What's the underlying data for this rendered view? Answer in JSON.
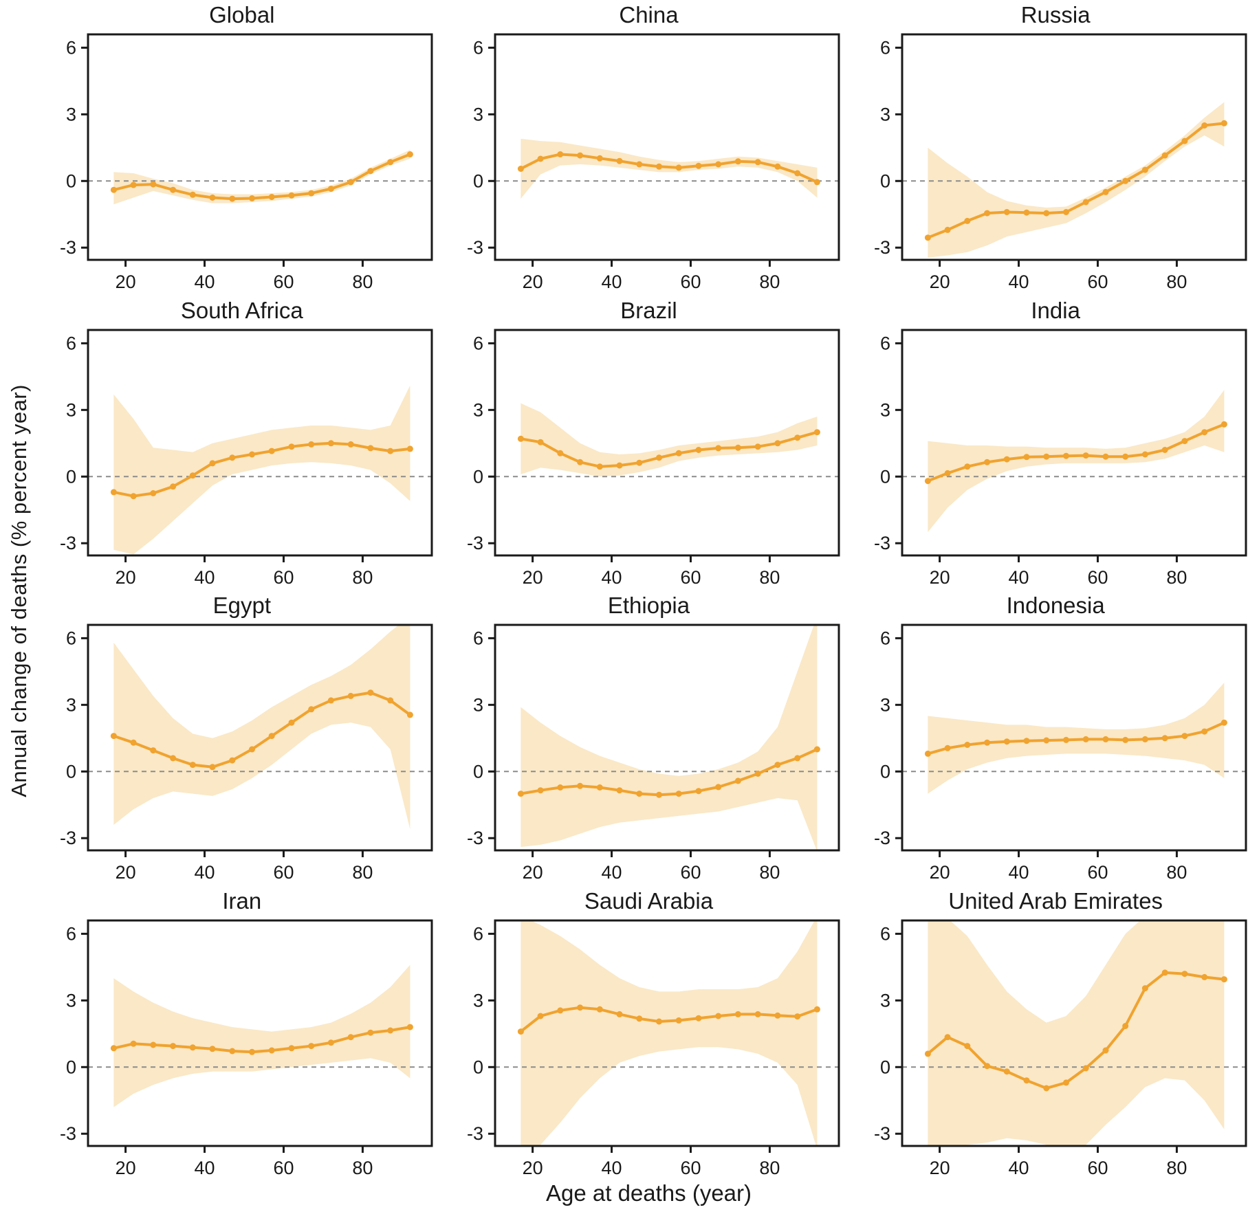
{
  "figure": {
    "y_axis_label": "Annual change of deaths (% percent year)",
    "x_axis_label": "Age at deaths (year)",
    "colors": {
      "line": "#F0A32F",
      "marker": "#F0A32F",
      "band": "#FAE8C7",
      "zero_line": "#8C8C8C",
      "axis": "#1A1A1A",
      "background": "#FFFFFF"
    }
  },
  "chart_data": [
    {
      "type": "line",
      "title": "Global",
      "x": [
        17,
        22,
        27,
        32,
        37,
        42,
        47,
        52,
        57,
        62,
        67,
        72,
        77,
        82,
        87,
        92
      ],
      "y": [
        -0.4,
        -0.18,
        -0.15,
        -0.4,
        -0.62,
        -0.75,
        -0.8,
        -0.78,
        -0.72,
        -0.65,
        -0.55,
        -0.35,
        -0.05,
        0.45,
        0.85,
        1.2
      ],
      "band_upper": [
        0.4,
        0.35,
        0.1,
        -0.1,
        -0.4,
        -0.55,
        -0.6,
        -0.6,
        -0.55,
        -0.5,
        -0.4,
        -0.2,
        0.1,
        0.6,
        1.0,
        1.4
      ],
      "band_lower": [
        -1.05,
        -0.75,
        -0.45,
        -0.65,
        -0.85,
        -1.0,
        -1.0,
        -0.95,
        -0.9,
        -0.8,
        -0.7,
        -0.5,
        -0.2,
        0.3,
        0.7,
        1.0
      ],
      "xticks": [
        20,
        40,
        60,
        80
      ],
      "yticks": [
        6,
        3,
        0,
        -3
      ],
      "xlim": [
        10.5,
        97.5
      ],
      "ylim": [
        -3.55,
        6.6
      ],
      "grid": false,
      "zero_line_dashed": true
    },
    {
      "type": "line",
      "title": "China",
      "x": [
        17,
        22,
        27,
        32,
        37,
        42,
        47,
        52,
        57,
        62,
        67,
        72,
        77,
        82,
        87,
        92
      ],
      "y": [
        0.55,
        1.0,
        1.2,
        1.15,
        1.02,
        0.9,
        0.75,
        0.65,
        0.6,
        0.68,
        0.75,
        0.88,
        0.85,
        0.65,
        0.35,
        -0.05
      ],
      "band_upper": [
        1.9,
        1.8,
        1.75,
        1.6,
        1.45,
        1.3,
        1.1,
        0.95,
        0.85,
        0.9,
        1.0,
        1.1,
        1.05,
        0.9,
        0.75,
        0.6
      ],
      "band_lower": [
        -0.8,
        0.3,
        0.7,
        0.75,
        0.7,
        0.6,
        0.5,
        0.4,
        0.4,
        0.5,
        0.55,
        0.65,
        0.6,
        0.4,
        0.0,
        -0.75
      ],
      "xticks": [
        20,
        40,
        60,
        80
      ],
      "yticks": [
        6,
        3,
        0,
        -3
      ],
      "xlim": [
        10.5,
        97.5
      ],
      "ylim": [
        -3.55,
        6.6
      ],
      "grid": false,
      "zero_line_dashed": true
    },
    {
      "type": "line",
      "title": "Russia",
      "x": [
        17,
        22,
        27,
        32,
        37,
        42,
        47,
        52,
        57,
        62,
        67,
        72,
        77,
        82,
        87,
        92
      ],
      "y": [
        -2.55,
        -2.2,
        -1.8,
        -1.45,
        -1.4,
        -1.42,
        -1.45,
        -1.4,
        -0.95,
        -0.5,
        0.0,
        0.5,
        1.15,
        1.8,
        2.5,
        2.6
      ],
      "band_upper": [
        1.5,
        0.8,
        0.2,
        -0.5,
        -0.9,
        -1.1,
        -1.2,
        -1.15,
        -0.75,
        -0.3,
        0.2,
        0.7,
        1.35,
        2.05,
        2.85,
        3.55
      ],
      "band_lower": [
        -3.45,
        -3.35,
        -3.2,
        -2.9,
        -2.5,
        -2.3,
        -2.1,
        -1.9,
        -1.45,
        -0.95,
        -0.4,
        0.2,
        0.9,
        1.55,
        2.05,
        1.55
      ],
      "xticks": [
        20,
        40,
        60,
        80
      ],
      "yticks": [
        6,
        3,
        0,
        -3
      ],
      "xlim": [
        10.5,
        97.5
      ],
      "ylim": [
        -3.55,
        6.6
      ],
      "grid": false,
      "zero_line_dashed": true
    },
    {
      "type": "line",
      "title": "South Africa",
      "x": [
        17,
        22,
        27,
        32,
        37,
        42,
        47,
        52,
        57,
        62,
        67,
        72,
        77,
        82,
        87,
        92
      ],
      "y": [
        -0.7,
        -0.88,
        -0.75,
        -0.45,
        0.05,
        0.6,
        0.85,
        1.0,
        1.15,
        1.35,
        1.45,
        1.5,
        1.45,
        1.28,
        1.15,
        1.25
      ],
      "band_upper": [
        3.7,
        2.6,
        1.3,
        1.2,
        1.1,
        1.5,
        1.7,
        1.9,
        2.1,
        2.2,
        2.3,
        2.3,
        2.2,
        2.1,
        2.3,
        4.1
      ],
      "band_lower": [
        -3.3,
        -3.5,
        -2.8,
        -2.0,
        -1.2,
        -0.4,
        0.1,
        0.3,
        0.5,
        0.6,
        0.65,
        0.6,
        0.5,
        0.3,
        -0.3,
        -1.1
      ],
      "xticks": [
        20,
        40,
        60,
        80
      ],
      "yticks": [
        6,
        3,
        0,
        -3
      ],
      "xlim": [
        10.5,
        97.5
      ],
      "ylim": [
        -3.55,
        6.6
      ],
      "grid": false,
      "zero_line_dashed": true
    },
    {
      "type": "line",
      "title": "Brazil",
      "x": [
        17,
        22,
        27,
        32,
        37,
        42,
        47,
        52,
        57,
        62,
        67,
        72,
        77,
        82,
        87,
        92
      ],
      "y": [
        1.7,
        1.55,
        1.05,
        0.65,
        0.45,
        0.5,
        0.62,
        0.85,
        1.05,
        1.2,
        1.28,
        1.3,
        1.35,
        1.5,
        1.75,
        2.0
      ],
      "band_upper": [
        3.3,
        2.9,
        2.2,
        1.5,
        1.1,
        1.0,
        1.05,
        1.2,
        1.4,
        1.5,
        1.6,
        1.7,
        1.8,
        2.0,
        2.4,
        2.7
      ],
      "band_lower": [
        0.1,
        0.4,
        0.3,
        0.15,
        0.0,
        0.05,
        0.2,
        0.4,
        0.7,
        0.85,
        0.95,
        1.0,
        1.05,
        1.1,
        1.2,
        1.4
      ],
      "xticks": [
        20,
        40,
        60,
        80
      ],
      "yticks": [
        6,
        3,
        0,
        -3
      ],
      "xlim": [
        10.5,
        97.5
      ],
      "ylim": [
        -3.55,
        6.6
      ],
      "grid": false,
      "zero_line_dashed": true
    },
    {
      "type": "line",
      "title": "India",
      "x": [
        17,
        22,
        27,
        32,
        37,
        42,
        47,
        52,
        57,
        62,
        67,
        72,
        77,
        82,
        87,
        92
      ],
      "y": [
        -0.2,
        0.15,
        0.45,
        0.65,
        0.78,
        0.88,
        0.9,
        0.93,
        0.95,
        0.9,
        0.9,
        1.0,
        1.2,
        1.6,
        2.0,
        2.35
      ],
      "band_upper": [
        1.6,
        1.5,
        1.4,
        1.4,
        1.35,
        1.35,
        1.3,
        1.3,
        1.3,
        1.25,
        1.3,
        1.5,
        1.7,
        2.0,
        2.7,
        3.9
      ],
      "band_lower": [
        -2.5,
        -1.4,
        -0.6,
        -0.1,
        0.25,
        0.45,
        0.55,
        0.6,
        0.6,
        0.6,
        0.6,
        0.65,
        0.8,
        1.1,
        1.4,
        1.1
      ],
      "xticks": [
        20,
        40,
        60,
        80
      ],
      "yticks": [
        6,
        3,
        0,
        -3
      ],
      "xlim": [
        10.5,
        97.5
      ],
      "ylim": [
        -3.55,
        6.6
      ],
      "grid": false,
      "zero_line_dashed": true
    },
    {
      "type": "line",
      "title": "Egypt",
      "x": [
        17,
        22,
        27,
        32,
        37,
        42,
        47,
        52,
        57,
        62,
        67,
        72,
        77,
        82,
        87,
        92
      ],
      "y": [
        1.6,
        1.3,
        0.95,
        0.6,
        0.3,
        0.2,
        0.5,
        1.0,
        1.6,
        2.2,
        2.8,
        3.2,
        3.4,
        3.55,
        3.2,
        2.55
      ],
      "band_upper": [
        5.8,
        4.6,
        3.4,
        2.4,
        1.7,
        1.5,
        1.8,
        2.3,
        2.9,
        3.4,
        3.9,
        4.3,
        4.8,
        5.5,
        6.3,
        7.0
      ],
      "band_lower": [
        -2.4,
        -1.7,
        -1.2,
        -0.9,
        -1.0,
        -1.1,
        -0.8,
        -0.3,
        0.3,
        1.0,
        1.7,
        2.1,
        2.2,
        2.0,
        1.0,
        -2.6
      ],
      "xticks": [
        20,
        40,
        60,
        80
      ],
      "yticks": [
        6,
        3,
        0,
        -3
      ],
      "xlim": [
        10.5,
        97.5
      ],
      "ylim": [
        -3.55,
        6.6
      ],
      "grid": false,
      "zero_line_dashed": true
    },
    {
      "type": "line",
      "title": "Ethiopia",
      "x": [
        17,
        22,
        27,
        32,
        37,
        42,
        47,
        52,
        57,
        62,
        67,
        72,
        77,
        82,
        87,
        92
      ],
      "y": [
        -1.0,
        -0.85,
        -0.72,
        -0.65,
        -0.72,
        -0.85,
        -1.0,
        -1.05,
        -1.0,
        -0.88,
        -0.7,
        -0.42,
        -0.1,
        0.3,
        0.6,
        1.0
      ],
      "band_upper": [
        2.9,
        2.2,
        1.6,
        1.1,
        0.7,
        0.4,
        0.1,
        -0.1,
        -0.2,
        -0.1,
        0.1,
        0.4,
        0.9,
        2.0,
        4.5,
        7.0
      ],
      "band_lower": [
        -3.4,
        -3.3,
        -3.1,
        -2.8,
        -2.5,
        -2.3,
        -2.2,
        -2.1,
        -2.0,
        -1.9,
        -1.8,
        -1.6,
        -1.4,
        -1.2,
        -1.3,
        -3.6
      ],
      "xticks": [
        20,
        40,
        60,
        80
      ],
      "yticks": [
        6,
        3,
        0,
        -3
      ],
      "xlim": [
        10.5,
        97.5
      ],
      "ylim": [
        -3.55,
        6.6
      ],
      "grid": false,
      "zero_line_dashed": true
    },
    {
      "type": "line",
      "title": "Indonesia",
      "x": [
        17,
        22,
        27,
        32,
        37,
        42,
        47,
        52,
        57,
        62,
        67,
        72,
        77,
        82,
        87,
        92
      ],
      "y": [
        0.8,
        1.05,
        1.2,
        1.3,
        1.35,
        1.38,
        1.4,
        1.42,
        1.45,
        1.45,
        1.42,
        1.45,
        1.5,
        1.6,
        1.8,
        2.2
      ],
      "band_upper": [
        2.5,
        2.4,
        2.3,
        2.2,
        2.1,
        2.1,
        2.0,
        2.0,
        1.95,
        1.9,
        1.9,
        1.95,
        2.1,
        2.4,
        3.0,
        4.0
      ],
      "band_lower": [
        -1.0,
        -0.4,
        0.1,
        0.4,
        0.6,
        0.7,
        0.75,
        0.8,
        0.8,
        0.8,
        0.75,
        0.7,
        0.6,
        0.5,
        0.3,
        -0.3
      ],
      "xticks": [
        20,
        40,
        60,
        80
      ],
      "yticks": [
        6,
        3,
        0,
        -3
      ],
      "xlim": [
        10.5,
        97.5
      ],
      "ylim": [
        -3.55,
        6.6
      ],
      "grid": false,
      "zero_line_dashed": true
    },
    {
      "type": "line",
      "title": "Iran",
      "x": [
        17,
        22,
        27,
        32,
        37,
        42,
        47,
        52,
        57,
        62,
        67,
        72,
        77,
        82,
        87,
        92
      ],
      "y": [
        0.85,
        1.05,
        1.0,
        0.95,
        0.88,
        0.82,
        0.72,
        0.68,
        0.75,
        0.85,
        0.95,
        1.1,
        1.35,
        1.55,
        1.65,
        1.8
      ],
      "band_upper": [
        4.0,
        3.4,
        2.9,
        2.5,
        2.2,
        2.0,
        1.8,
        1.7,
        1.6,
        1.7,
        1.8,
        2.0,
        2.4,
        2.9,
        3.6,
        4.6
      ],
      "band_lower": [
        -1.8,
        -1.2,
        -0.8,
        -0.5,
        -0.3,
        -0.2,
        -0.2,
        -0.2,
        -0.1,
        0.0,
        0.1,
        0.2,
        0.3,
        0.4,
        0.2,
        -0.5
      ],
      "xticks": [
        20,
        40,
        60,
        80
      ],
      "yticks": [
        6,
        3,
        0,
        -3
      ],
      "xlim": [
        10.5,
        97.5
      ],
      "ylim": [
        -3.55,
        6.6
      ],
      "grid": false,
      "zero_line_dashed": true
    },
    {
      "type": "line",
      "title": "Saudi Arabia",
      "x": [
        17,
        22,
        27,
        32,
        37,
        42,
        47,
        52,
        57,
        62,
        67,
        72,
        77,
        82,
        87,
        92
      ],
      "y": [
        1.6,
        2.3,
        2.55,
        2.68,
        2.6,
        2.38,
        2.18,
        2.05,
        2.1,
        2.2,
        2.3,
        2.38,
        2.38,
        2.32,
        2.28,
        2.6
      ],
      "band_upper": [
        6.8,
        6.4,
        5.9,
        5.3,
        4.6,
        4.0,
        3.6,
        3.4,
        3.4,
        3.5,
        3.5,
        3.5,
        3.6,
        4.0,
        5.2,
        6.8
      ],
      "band_lower": [
        -3.7,
        -3.5,
        -2.5,
        -1.4,
        -0.5,
        0.2,
        0.5,
        0.7,
        0.8,
        0.9,
        0.9,
        0.8,
        0.6,
        0.2,
        -0.8,
        -3.7
      ],
      "xticks": [
        20,
        40,
        60,
        80
      ],
      "yticks": [
        6,
        3,
        0,
        -3
      ],
      "xlim": [
        10.5,
        97.5
      ],
      "ylim": [
        -3.55,
        6.6
      ],
      "grid": false,
      "zero_line_dashed": true
    },
    {
      "type": "line",
      "title": "United Arab Emirates",
      "x": [
        17,
        22,
        27,
        32,
        37,
        42,
        47,
        52,
        57,
        62,
        67,
        72,
        77,
        82,
        87,
        92
      ],
      "y": [
        0.6,
        1.35,
        0.95,
        0.05,
        -0.2,
        -0.6,
        -0.95,
        -0.7,
        -0.05,
        0.75,
        1.85,
        3.55,
        4.25,
        4.2,
        4.05,
        3.95
      ],
      "band_upper": [
        6.8,
        6.7,
        5.9,
        4.6,
        3.4,
        2.6,
        2.0,
        2.3,
        3.2,
        4.6,
        6.0,
        6.8,
        6.8,
        6.8,
        6.7,
        6.6
      ],
      "band_lower": [
        -3.7,
        -3.6,
        -3.5,
        -3.4,
        -3.2,
        -3.3,
        -3.5,
        -3.6,
        -3.5,
        -2.6,
        -1.8,
        -0.9,
        -0.5,
        -0.6,
        -1.5,
        -2.8
      ],
      "xticks": [
        20,
        40,
        60,
        80
      ],
      "yticks": [
        6,
        3,
        0,
        -3
      ],
      "xlim": [
        10.5,
        97.5
      ],
      "ylim": [
        -3.55,
        6.6
      ],
      "grid": false,
      "zero_line_dashed": true
    }
  ]
}
